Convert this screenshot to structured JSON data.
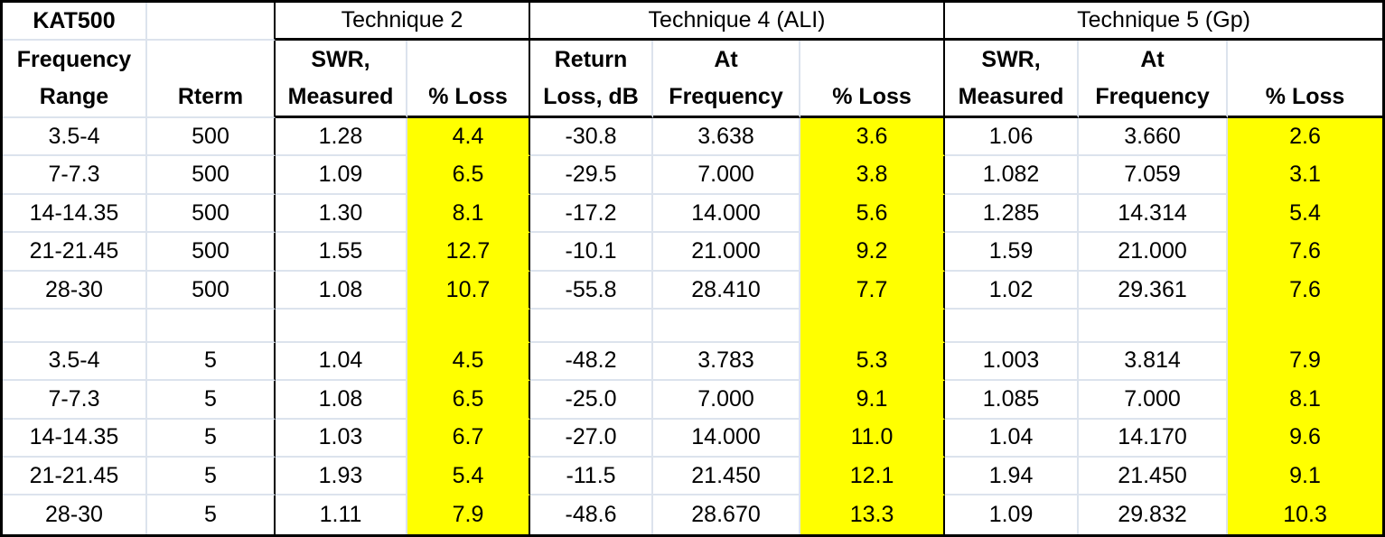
{
  "table": {
    "corner_label": "KAT500",
    "technique_groups": [
      {
        "label": "Technique 2",
        "colspan": 2
      },
      {
        "label": "Technique 4 (ALI)",
        "colspan": 3
      },
      {
        "label": "Technique 5 (Gp)",
        "colspan": 3
      }
    ],
    "column_headers": [
      {
        "line1": "Frequency",
        "line2": "Range"
      },
      {
        "line1": "",
        "line2": "Rterm"
      },
      {
        "line1": "SWR,",
        "line2": "Measured"
      },
      {
        "line1": "",
        "line2": "% Loss"
      },
      {
        "line1": "Return",
        "line2": "Loss, dB"
      },
      {
        "line1": "At",
        "line2": "Frequency"
      },
      {
        "line1": "",
        "line2": "% Loss"
      },
      {
        "line1": "SWR,",
        "line2": "Measured"
      },
      {
        "line1": "At",
        "line2": "Frequency"
      },
      {
        "line1": "",
        "line2": "% Loss"
      }
    ],
    "column_keys": [
      "frequency-range",
      "rterm",
      "t2-swr-measured",
      "t2-percent-loss",
      "t4-return-loss-db",
      "t4-at-frequency",
      "t4-percent-loss",
      "t5-swr-measured",
      "t5-at-frequency",
      "t5-percent-loss"
    ],
    "highlight_columns": [
      3,
      6,
      9
    ],
    "rows": [
      [
        "3.5-4",
        "500",
        "1.28",
        "4.4",
        "-30.8",
        "3.638",
        "3.6",
        "1.06",
        "3.660",
        "2.6"
      ],
      [
        "7-7.3",
        "500",
        "1.09",
        "6.5",
        "-29.5",
        "7.000",
        "3.8",
        "1.082",
        "7.059",
        "3.1"
      ],
      [
        "14-14.35",
        "500",
        "1.30",
        "8.1",
        "-17.2",
        "14.000",
        "5.6",
        "1.285",
        "14.314",
        "5.4"
      ],
      [
        "21-21.45",
        "500",
        "1.55",
        "12.7",
        "-10.1",
        "21.000",
        "9.2",
        "1.59",
        "21.000",
        "7.6"
      ],
      [
        "28-30",
        "500",
        "1.08",
        "10.7",
        "-55.8",
        "28.410",
        "7.7",
        "1.02",
        "29.361",
        "7.6"
      ],
      [
        "",
        "",
        "",
        "",
        "",
        "",
        "",
        "",
        "",
        ""
      ],
      [
        "3.5-4",
        "5",
        "1.04",
        "4.5",
        "-48.2",
        "3.783",
        "5.3",
        "1.003",
        "3.814",
        "7.9"
      ],
      [
        "7-7.3",
        "5",
        "1.08",
        "6.5",
        "-25.0",
        "7.000",
        "9.1",
        "1.085",
        "7.000",
        "8.1"
      ],
      [
        "14-14.35",
        "5",
        "1.03",
        "6.7",
        "-27.0",
        "14.000",
        "11.0",
        "1.04",
        "14.170",
        "9.6"
      ],
      [
        "21-21.45",
        "5",
        "1.93",
        "5.4",
        "-11.5",
        "21.450",
        "12.1",
        "1.94",
        "21.450",
        "9.1"
      ],
      [
        "28-30",
        "5",
        "1.11",
        "7.9",
        "-48.6",
        "28.670",
        "13.3",
        "1.09",
        "29.832",
        "10.3"
      ]
    ],
    "colors": {
      "highlight_yellow": "#ffff00",
      "gridline": "#dce3ed",
      "border_black": "#000000"
    }
  }
}
